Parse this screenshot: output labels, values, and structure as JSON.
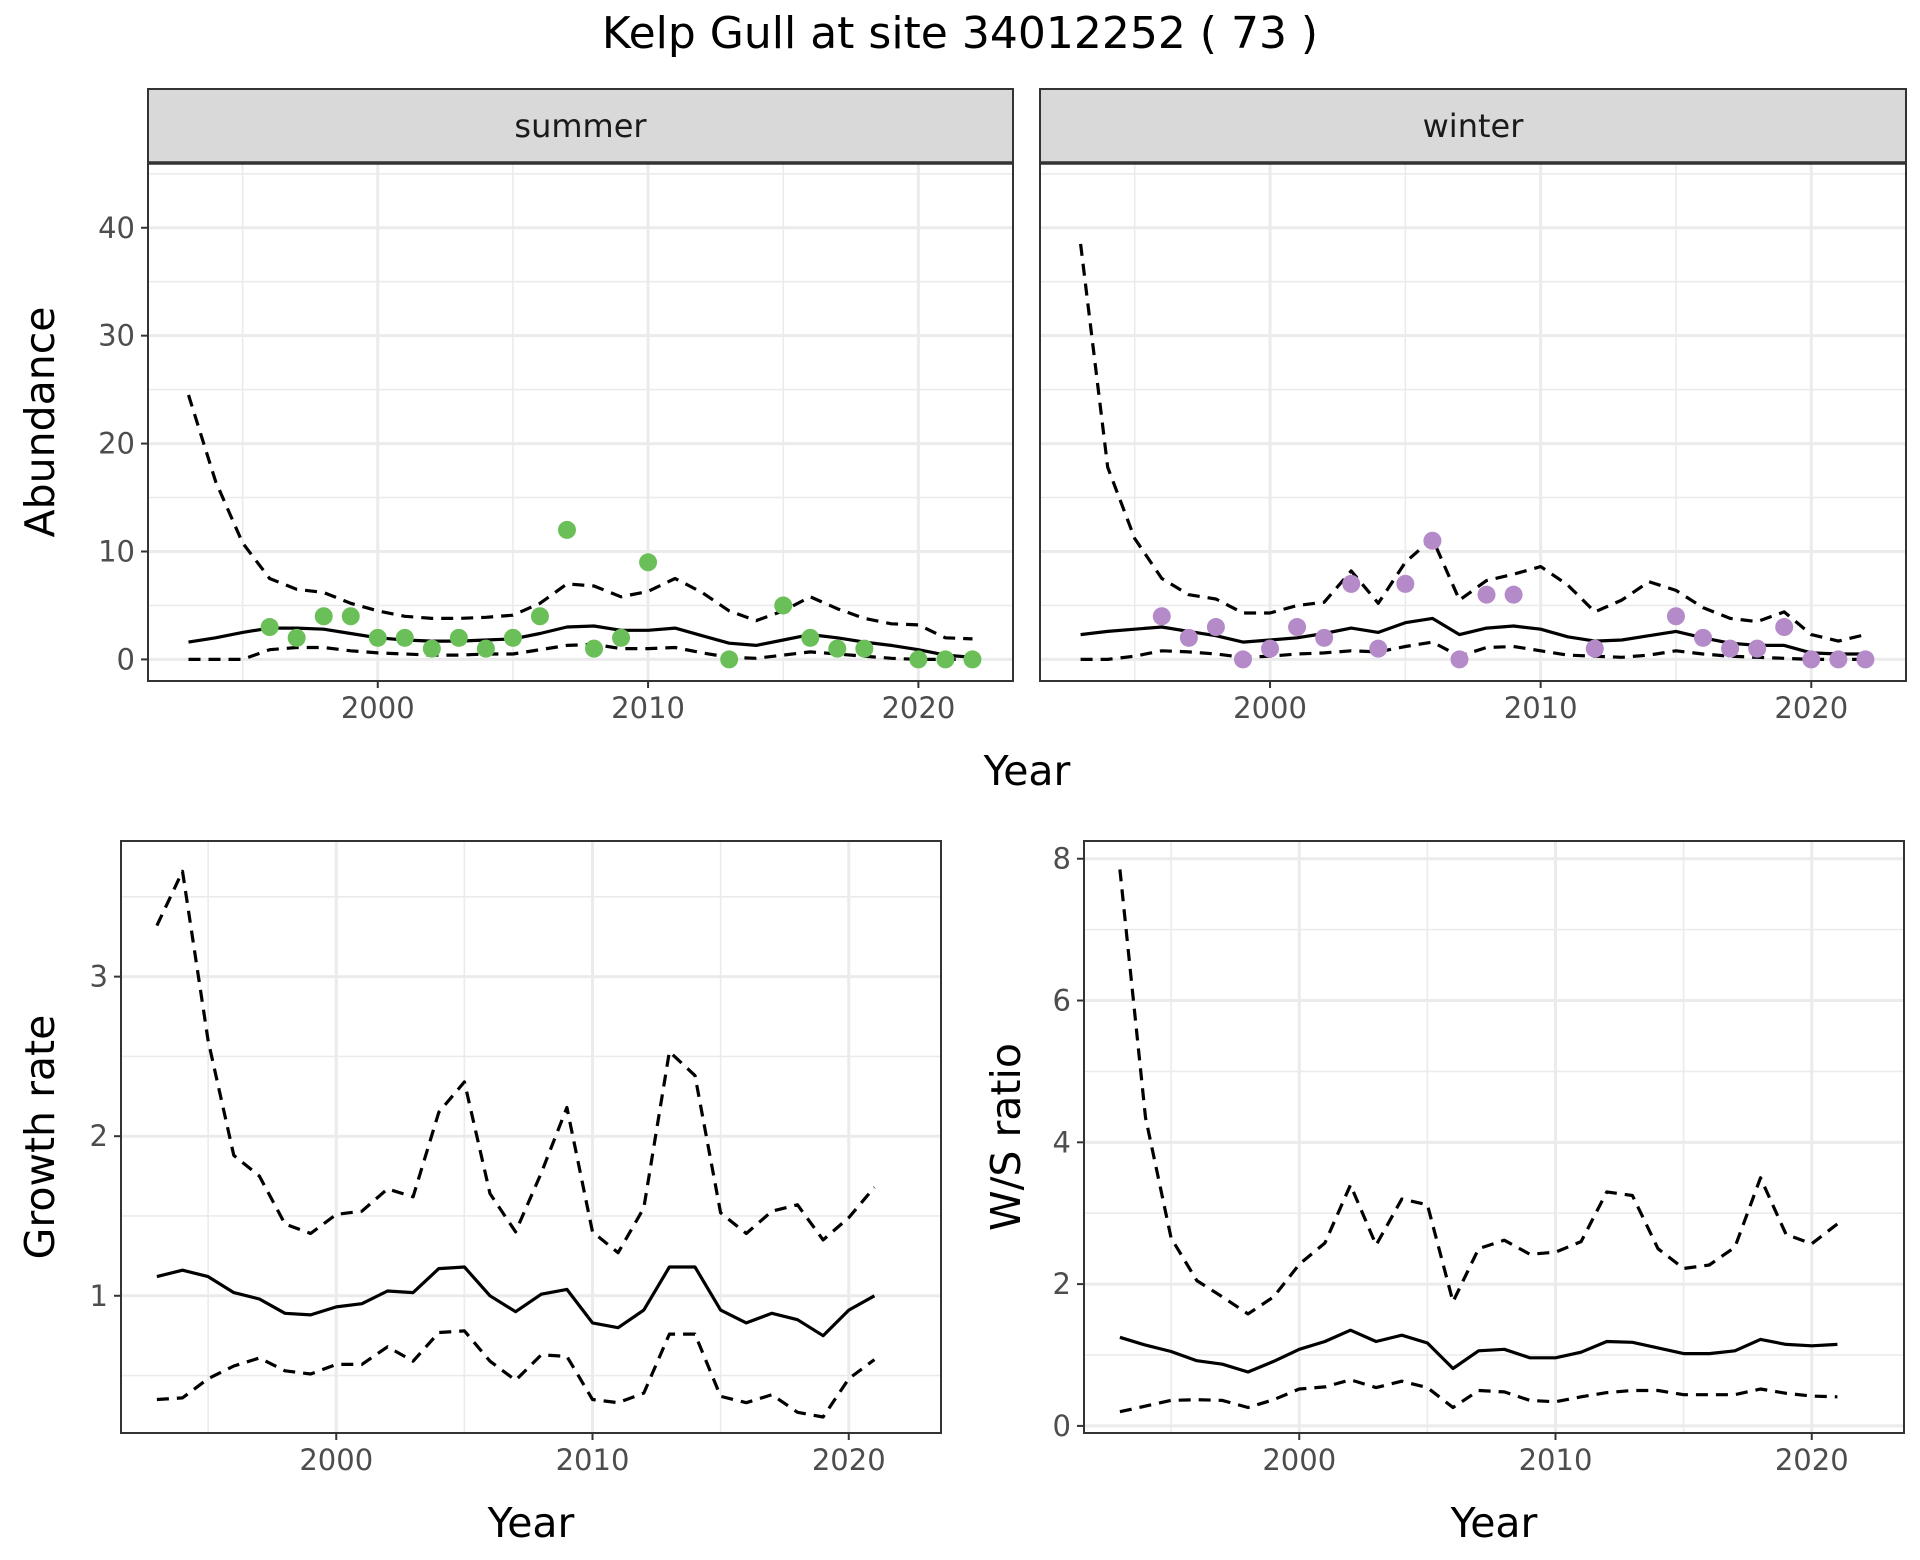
{
  "title": "Kelp Gull at site 34012252 ( 73 )",
  "colors": {
    "summer_points": "#6bbf59",
    "winter_points": "#b48ac9",
    "lines": "#000000",
    "grid": "#ebebeb",
    "strip_fill": "#d9d9d9",
    "panel_border": "#333333"
  },
  "chart_data": [
    {
      "type": "line",
      "panel": "summer",
      "strip_label": "summer",
      "xlabel": "Year",
      "ylabel": "Abundance",
      "xlim": [
        1991.5,
        2023.5
      ],
      "ylim": [
        -2,
        46
      ],
      "xticks": [
        2000,
        2010,
        2020
      ],
      "yticks": [
        0,
        10,
        20,
        30,
        40
      ],
      "grid": true,
      "x": [
        1993,
        1994,
        1995,
        1996,
        1997,
        1998,
        1999,
        2000,
        2001,
        2002,
        2003,
        2004,
        2005,
        2006,
        2007,
        2008,
        2009,
        2010,
        2011,
        2012,
        2013,
        2014,
        2015,
        2016,
        2017,
        2018,
        2019,
        2020,
        2021,
        2022
      ],
      "series": [
        {
          "style": "solid",
          "values": [
            1.6,
            2.0,
            2.5,
            2.9,
            2.9,
            2.8,
            2.4,
            2.0,
            1.8,
            1.7,
            1.7,
            1.8,
            1.9,
            2.4,
            3.0,
            3.1,
            2.7,
            2.7,
            2.9,
            2.2,
            1.5,
            1.3,
            1.8,
            2.3,
            2.0,
            1.6,
            1.3,
            0.9,
            0.4,
            0.2
          ]
        },
        {
          "style": "dashed",
          "values": [
            24.5,
            16.5,
            10.8,
            7.5,
            6.5,
            6.2,
            5.2,
            4.5,
            4.0,
            3.8,
            3.8,
            3.9,
            4.1,
            5.2,
            7.0,
            6.8,
            5.8,
            6.3,
            7.5,
            6.2,
            4.5,
            3.6,
            4.5,
            5.8,
            4.7,
            3.8,
            3.3,
            3.2,
            2.0,
            1.9
          ]
        },
        {
          "style": "dashed",
          "values": [
            0.0,
            0.0,
            0.0,
            0.9,
            1.1,
            1.1,
            0.8,
            0.6,
            0.5,
            0.4,
            0.4,
            0.5,
            0.5,
            0.9,
            1.3,
            1.4,
            1.0,
            1.0,
            1.1,
            0.6,
            0.2,
            0.1,
            0.4,
            0.7,
            0.5,
            0.3,
            0.1,
            0.0,
            0.0,
            0.0
          ]
        }
      ],
      "points": {
        "x": [
          1996,
          1997,
          1998,
          1999,
          2000,
          2001,
          2002,
          2003,
          2004,
          2005,
          2006,
          2007,
          2008,
          2009,
          2010,
          2013,
          2015,
          2016,
          2017,
          2018,
          2020,
          2021,
          2022
        ],
        "y": [
          3,
          2,
          4,
          4,
          2,
          2,
          1,
          2,
          1,
          2,
          4,
          12,
          1,
          2,
          9,
          0,
          5,
          2,
          1,
          1,
          0,
          0,
          0
        ]
      }
    },
    {
      "type": "line",
      "panel": "winter",
      "strip_label": "winter",
      "xlabel": "Year",
      "ylabel": "",
      "xlim": [
        1991.5,
        2023.5
      ],
      "ylim": [
        -2,
        46
      ],
      "xticks": [
        2000,
        2010,
        2020
      ],
      "yticks": [
        0,
        10,
        20,
        30,
        40
      ],
      "grid": true,
      "x": [
        1993,
        1994,
        1995,
        1996,
        1997,
        1998,
        1999,
        2000,
        2001,
        2002,
        2003,
        2004,
        2005,
        2006,
        2007,
        2008,
        2009,
        2010,
        2011,
        2012,
        2013,
        2014,
        2015,
        2016,
        2017,
        2018,
        2019,
        2020,
        2021,
        2022
      ],
      "series": [
        {
          "style": "solid",
          "values": [
            2.3,
            2.6,
            2.8,
            3.0,
            2.6,
            2.2,
            1.6,
            1.8,
            2.0,
            2.4,
            2.9,
            2.5,
            3.4,
            3.8,
            2.3,
            2.9,
            3.1,
            2.8,
            2.1,
            1.7,
            1.8,
            2.2,
            2.6,
            2.0,
            1.5,
            1.3,
            1.3,
            0.6,
            0.5,
            0.5
          ]
        },
        {
          "style": "dashed",
          "values": [
            38.5,
            17.8,
            11.2,
            7.5,
            6.0,
            5.6,
            4.3,
            4.3,
            5.0,
            5.3,
            8.2,
            5.2,
            9.0,
            11.2,
            5.5,
            7.3,
            7.9,
            8.6,
            6.9,
            4.4,
            5.5,
            7.2,
            6.4,
            4.8,
            3.8,
            3.5,
            4.4,
            2.3,
            1.7,
            2.3
          ]
        },
        {
          "style": "dashed",
          "values": [
            0.0,
            0.0,
            0.3,
            0.8,
            0.7,
            0.5,
            0.2,
            0.3,
            0.5,
            0.6,
            0.8,
            0.7,
            1.2,
            1.6,
            0.3,
            1.1,
            1.2,
            0.8,
            0.4,
            0.3,
            0.2,
            0.4,
            0.8,
            0.5,
            0.3,
            0.2,
            0.1,
            0.0,
            0.0,
            0.0
          ]
        }
      ],
      "points": {
        "x": [
          1996,
          1997,
          1998,
          1999,
          2000,
          2001,
          2002,
          2003,
          2004,
          2005,
          2006,
          2007,
          2008,
          2009,
          2012,
          2015,
          2016,
          2017,
          2018,
          2019,
          2020,
          2021,
          2022
        ],
        "y": [
          4,
          2,
          3,
          0,
          1,
          3,
          2,
          7,
          1,
          7,
          11,
          0,
          6,
          6,
          1,
          4,
          2,
          1,
          1,
          3,
          0,
          0,
          0
        ]
      }
    },
    {
      "type": "line",
      "panel": "growth",
      "xlabel": "Year",
      "ylabel": "Growth rate",
      "xlim": [
        1991.6,
        2023.6
      ],
      "ylim": [
        0.14,
        3.85
      ],
      "xticks": [
        2000,
        2010,
        2020
      ],
      "yticks": [
        1,
        2,
        3
      ],
      "grid": true,
      "x": [
        1993,
        1994,
        1995,
        1996,
        1997,
        1998,
        1999,
        2000,
        2001,
        2002,
        2003,
        2004,
        2005,
        2006,
        2007,
        2008,
        2009,
        2010,
        2011,
        2012,
        2013,
        2014,
        2015,
        2016,
        2017,
        2018,
        2019,
        2020,
        2021
      ],
      "series": [
        {
          "style": "solid",
          "values": [
            1.12,
            1.16,
            1.12,
            1.02,
            0.98,
            0.89,
            0.88,
            0.93,
            0.95,
            1.03,
            1.02,
            1.17,
            1.18,
            1.0,
            0.9,
            1.01,
            1.04,
            0.83,
            0.8,
            0.91,
            1.18,
            1.18,
            0.91,
            0.83,
            0.89,
            0.85,
            0.75,
            0.91,
            1.0
          ]
        },
        {
          "style": "dashed",
          "values": [
            3.32,
            3.66,
            2.6,
            1.88,
            1.75,
            1.45,
            1.39,
            1.51,
            1.53,
            1.67,
            1.62,
            2.15,
            2.34,
            1.64,
            1.4,
            1.77,
            2.18,
            1.4,
            1.27,
            1.55,
            2.53,
            2.38,
            1.52,
            1.39,
            1.53,
            1.57,
            1.35,
            1.49,
            1.68
          ]
        },
        {
          "style": "dashed",
          "values": [
            0.35,
            0.36,
            0.48,
            0.56,
            0.61,
            0.53,
            0.51,
            0.57,
            0.57,
            0.68,
            0.59,
            0.77,
            0.78,
            0.59,
            0.47,
            0.63,
            0.62,
            0.35,
            0.33,
            0.39,
            0.76,
            0.76,
            0.37,
            0.33,
            0.38,
            0.27,
            0.24,
            0.48,
            0.6
          ]
        }
      ]
    },
    {
      "type": "line",
      "panel": "ratio",
      "xlabel": "Year",
      "ylabel": "W/S ratio",
      "xlim": [
        1991.6,
        2023.6
      ],
      "ylim": [
        -0.1,
        8.25
      ],
      "xticks": [
        2000,
        2010,
        2020
      ],
      "yticks": [
        0,
        2,
        4,
        6,
        8
      ],
      "grid": true,
      "x": [
        1993,
        1994,
        1995,
        1996,
        1997,
        1998,
        1999,
        2000,
        2001,
        2002,
        2003,
        2004,
        2005,
        2006,
        2007,
        2008,
        2009,
        2010,
        2011,
        2012,
        2013,
        2014,
        2015,
        2016,
        2017,
        2018,
        2019,
        2020,
        2021
      ],
      "series": [
        {
          "style": "solid",
          "values": [
            1.25,
            1.14,
            1.05,
            0.92,
            0.87,
            0.76,
            0.91,
            1.08,
            1.19,
            1.35,
            1.19,
            1.28,
            1.17,
            0.81,
            1.06,
            1.08,
            0.96,
            0.96,
            1.04,
            1.19,
            1.18,
            1.1,
            1.02,
            1.02,
            1.06,
            1.22,
            1.15,
            1.13,
            1.15
          ]
        },
        {
          "style": "dashed",
          "values": [
            7.85,
            4.35,
            2.65,
            2.05,
            1.82,
            1.58,
            1.82,
            2.28,
            2.58,
            3.4,
            2.55,
            3.2,
            3.12,
            1.75,
            2.5,
            2.62,
            2.42,
            2.45,
            2.6,
            3.3,
            3.25,
            2.5,
            2.22,
            2.27,
            2.52,
            3.5,
            2.7,
            2.57,
            2.85
          ]
        },
        {
          "style": "dashed",
          "values": [
            0.2,
            0.28,
            0.36,
            0.37,
            0.36,
            0.26,
            0.37,
            0.52,
            0.55,
            0.65,
            0.54,
            0.63,
            0.54,
            0.26,
            0.5,
            0.48,
            0.36,
            0.34,
            0.41,
            0.47,
            0.5,
            0.5,
            0.44,
            0.44,
            0.44,
            0.52,
            0.46,
            0.42,
            0.41
          ]
        }
      ]
    }
  ]
}
